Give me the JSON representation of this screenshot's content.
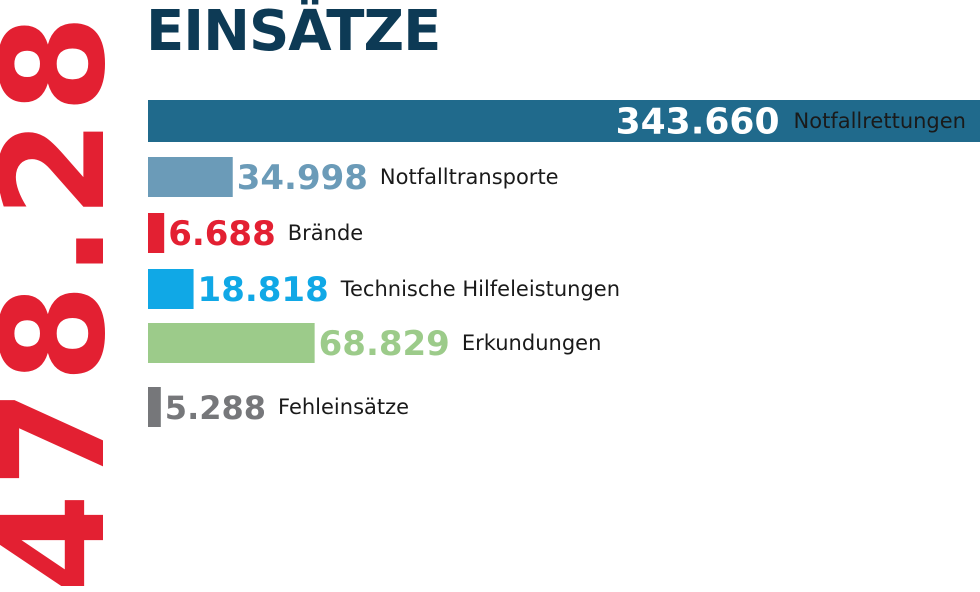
{
  "total": {
    "value": "478.281",
    "color": "#e32032"
  },
  "chart_data": {
    "type": "bar",
    "title": "EINSÄTZE",
    "orientation": "horizontal",
    "xlim": [
      0,
      343660
    ],
    "categories": [
      "Notfallrettungen",
      "Notfalltransporte",
      "Brände",
      "Technische Hilfeleistungen",
      "Erkundungen",
      "Fehleinsätze"
    ],
    "values": [
      343660,
      34998,
      6688,
      18818,
      68829,
      5288
    ],
    "value_labels": [
      "343.660",
      "34.998",
      "6.688",
      "18.818",
      "68.829",
      "5.288"
    ],
    "colors": [
      "#206a8c",
      "#6b9bb8",
      "#e32032",
      "#10a8e6",
      "#9ccb8a",
      "#76777a"
    ],
    "value_colors": [
      "#ffffff",
      "#6b9bb8",
      "#e32032",
      "#10a8e6",
      "#9ccb8a",
      "#76777a"
    ],
    "label_colors": [
      "#ffffff",
      "#1a1a1a",
      "#1a1a1a",
      "#1a1a1a",
      "#1a1a1a",
      "#1a1a1a"
    ]
  }
}
